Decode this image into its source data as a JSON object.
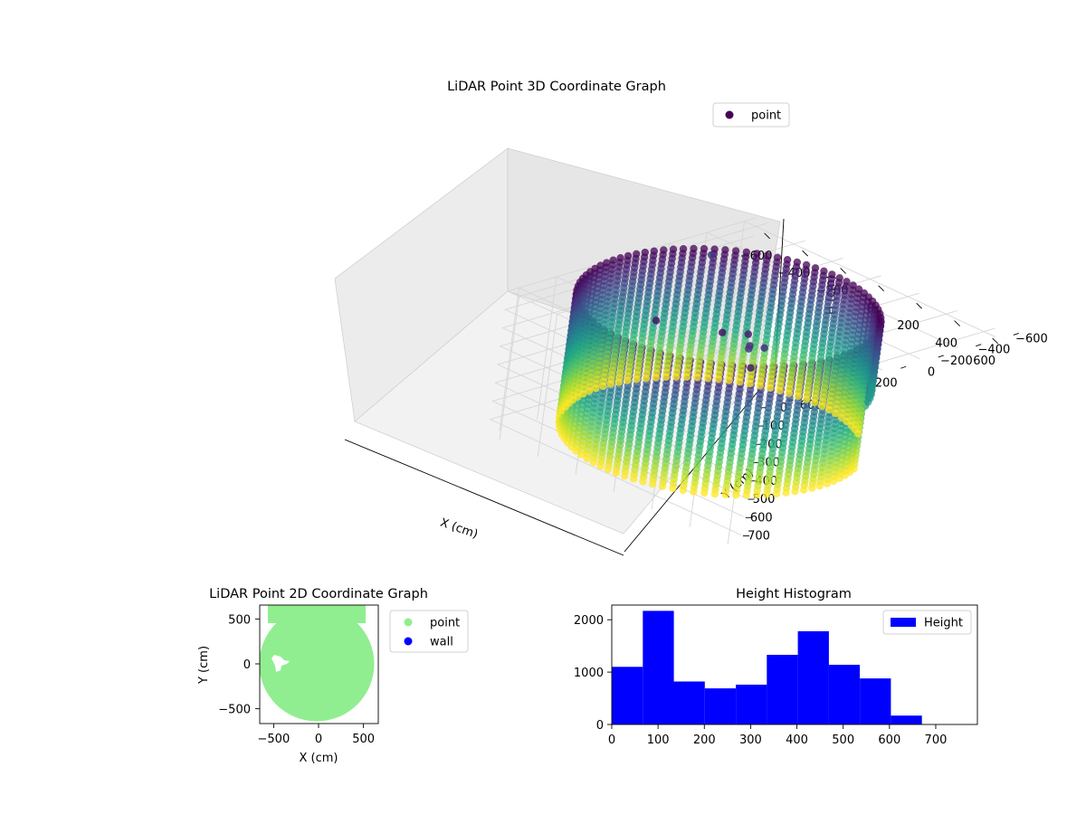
{
  "figure": {
    "background": "#ffffff"
  },
  "chart_data": [
    {
      "id": "scatter3d",
      "type": "scatter",
      "title": "LiDAR Point 3D Coordinate Graph",
      "xlabel": "X (cm)",
      "ylabel": "Y (cm)",
      "zlabel": "H (cm)",
      "xticks": [
        -600,
        -400,
        -200,
        0,
        200,
        400,
        600
      ],
      "yticks": [
        600,
        400,
        200,
        0,
        -200,
        -400,
        -600
      ],
      "zticks": [
        0,
        100,
        200,
        300,
        400,
        500,
        600,
        700
      ],
      "xlim": [
        -660,
        660
      ],
      "ylim": [
        -660,
        660
      ],
      "zlim": [
        0,
        780
      ],
      "colormap": "viridis",
      "legend": {
        "location": "top-right",
        "entries": [
          {
            "label": "point",
            "color": "#440154"
          }
        ]
      },
      "series": [
        {
          "name": "point",
          "shape": "cylindrical wall of points, radius ~570 cm, heights 0–700 cm, colored by height"
        }
      ]
    },
    {
      "id": "scatter2d",
      "type": "scatter",
      "title": "LiDAR Point 2D Coordinate Graph",
      "xlabel": "X (cm)",
      "ylabel": "Y (cm)",
      "xticks": [
        -500,
        0,
        500
      ],
      "yticks": [
        500,
        0,
        -500
      ],
      "xlim": [
        -660,
        660
      ],
      "ylim": [
        -660,
        660
      ],
      "legend": {
        "location": "outside-right",
        "entries": [
          {
            "label": "point",
            "color": "#90ee90"
          },
          {
            "label": "wall",
            "color": "#0000ff"
          }
        ]
      },
      "series": [
        {
          "name": "point",
          "color": "#90ee90"
        },
        {
          "name": "wall",
          "color": "#0000ff"
        }
      ]
    },
    {
      "id": "histogram",
      "type": "bar",
      "title": "Height Histogram",
      "bin_edges": [
        0,
        67,
        134,
        201,
        268,
        335,
        402,
        469,
        536,
        603,
        670
      ],
      "values": [
        1100,
        2170,
        820,
        690,
        760,
        1330,
        1780,
        1140,
        880,
        170
      ],
      "xticks": [
        0,
        100,
        200,
        300,
        400,
        500,
        600,
        700
      ],
      "yticks": [
        0,
        1000,
        2000
      ],
      "xlim": [
        0,
        790
      ],
      "ylim": [
        0,
        2280
      ],
      "legend": {
        "location": "top-right",
        "entries": [
          {
            "label": "Height",
            "color": "#0000ff"
          }
        ]
      },
      "color": "#0000ff"
    }
  ]
}
